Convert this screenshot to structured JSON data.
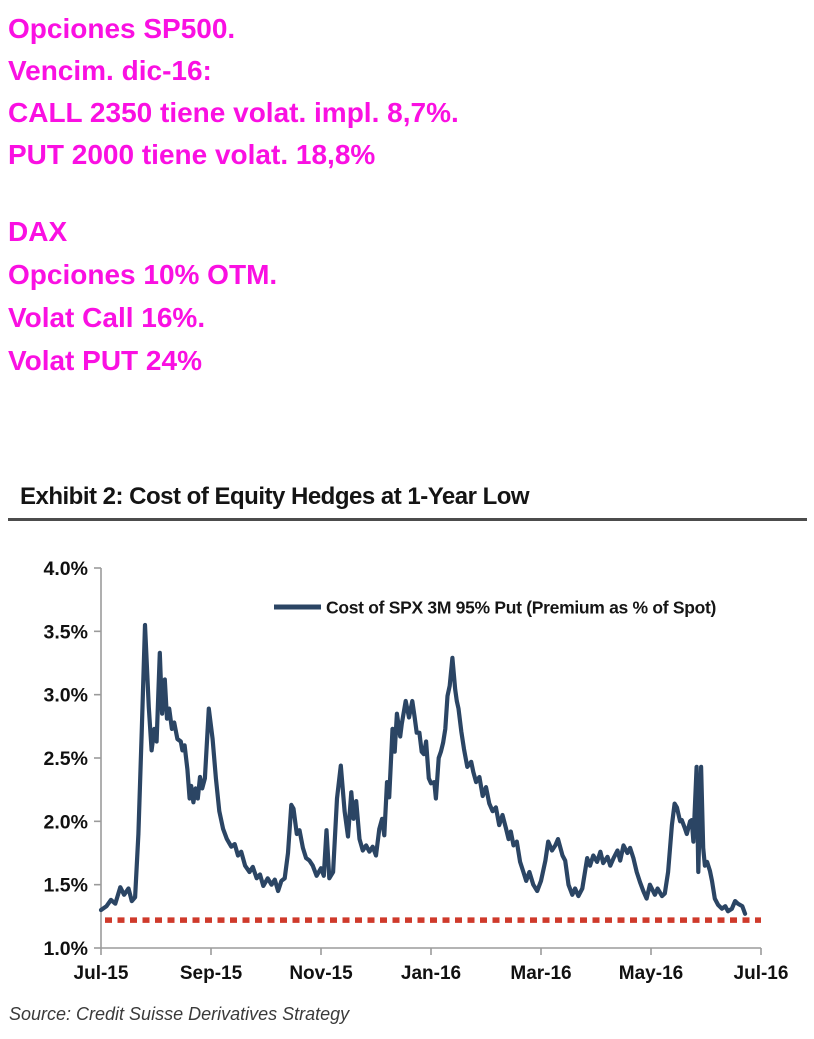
{
  "colors": {
    "magenta": "#fa10e2",
    "series_line": "#2b4564",
    "reference_dotted": "#cf3a2b",
    "axis": "#9b9b9b",
    "tick_label": "#111111",
    "legend_text": "#161616",
    "exhibit_rule": "#4c4c4c",
    "background": "#ffffff"
  },
  "annotations": {
    "block1": {
      "lines": [
        "Opciones SP500.",
        "Vencim. dic-16:",
        "CALL 2350 tiene volat. impl. 8,7%.",
        "PUT 2000 tiene volat. 18,8%"
      ]
    },
    "block2": {
      "lines": [
        "DAX",
        "Opciones 10% OTM.",
        "Volat Call 16%.",
        "Volat PUT 24%"
      ]
    }
  },
  "exhibit": {
    "title": "Exhibit 2: Cost of Equity Hedges at 1-Year Low",
    "source": "Source: Credit Suisse Derivatives Strategy"
  },
  "chart_data": {
    "type": "line",
    "title": "Exhibit 2: Cost of Equity Hedges at 1-Year Low",
    "xlabel": "",
    "ylabel": "Premium as % of Spot",
    "legend_position": "top-center-inside",
    "grid": false,
    "ylim": [
      1.0,
      4.0
    ],
    "xlim_months": [
      0,
      12
    ],
    "legend": [
      "Cost of SPX 3M 95% Put (Premium as % of Spot)"
    ],
    "y_ticks": [
      {
        "label": "4.0%",
        "v": 4.0
      },
      {
        "label": "3.5%",
        "v": 3.5
      },
      {
        "label": "3.0%",
        "v": 3.0
      },
      {
        "label": "2.5%",
        "v": 2.5
      },
      {
        "label": "2.0%",
        "v": 2.0
      },
      {
        "label": "1.5%",
        "v": 1.5
      },
      {
        "label": "1.0%",
        "v": 1.0
      }
    ],
    "x_ticks": [
      {
        "label": "Jul-15",
        "m": 0
      },
      {
        "label": "Sep-15",
        "m": 2
      },
      {
        "label": "Nov-15",
        "m": 4
      },
      {
        "label": "Jan-16",
        "m": 6
      },
      {
        "label": "Mar-16",
        "m": 8
      },
      {
        "label": "May-16",
        "m": 10
      },
      {
        "label": "Jul-16",
        "m": 12
      }
    ],
    "reference_line": {
      "value": 1.22,
      "style": "dotted",
      "color": "#cf3a2b"
    },
    "series": [
      {
        "name": "Cost of SPX 3M 95% Put (Premium as % of Spot)",
        "color": "#2b4564",
        "points": [
          [
            0.0,
            1.3
          ],
          [
            0.1,
            1.33
          ],
          [
            0.18,
            1.38
          ],
          [
            0.26,
            1.35
          ],
          [
            0.35,
            1.48
          ],
          [
            0.42,
            1.42
          ],
          [
            0.5,
            1.47
          ],
          [
            0.56,
            1.37
          ],
          [
            0.62,
            1.4
          ],
          [
            0.68,
            1.9
          ],
          [
            0.74,
            2.7
          ],
          [
            0.8,
            3.55
          ],
          [
            0.87,
            2.9
          ],
          [
            0.92,
            2.56
          ],
          [
            0.97,
            2.73
          ],
          [
            1.01,
            2.63
          ],
          [
            1.07,
            3.33
          ],
          [
            1.11,
            2.85
          ],
          [
            1.16,
            3.12
          ],
          [
            1.2,
            2.81
          ],
          [
            1.24,
            2.89
          ],
          [
            1.29,
            2.73
          ],
          [
            1.33,
            2.78
          ],
          [
            1.39,
            2.65
          ],
          [
            1.45,
            2.63
          ],
          [
            1.48,
            2.56
          ],
          [
            1.52,
            2.6
          ],
          [
            1.57,
            2.41
          ],
          [
            1.61,
            2.18
          ],
          [
            1.64,
            2.28
          ],
          [
            1.68,
            2.15
          ],
          [
            1.72,
            2.26
          ],
          [
            1.76,
            2.18
          ],
          [
            1.8,
            2.35
          ],
          [
            1.84,
            2.26
          ],
          [
            1.89,
            2.34
          ],
          [
            1.96,
            2.89
          ],
          [
            2.03,
            2.65
          ],
          [
            2.09,
            2.34
          ],
          [
            2.15,
            2.08
          ],
          [
            2.22,
            1.94
          ],
          [
            2.29,
            1.86
          ],
          [
            2.37,
            1.8
          ],
          [
            2.43,
            1.82
          ],
          [
            2.49,
            1.73
          ],
          [
            2.55,
            1.76
          ],
          [
            2.62,
            1.65
          ],
          [
            2.7,
            1.6
          ],
          [
            2.76,
            1.64
          ],
          [
            2.83,
            1.55
          ],
          [
            2.89,
            1.58
          ],
          [
            2.95,
            1.49
          ],
          [
            3.03,
            1.55
          ],
          [
            3.1,
            1.5
          ],
          [
            3.16,
            1.54
          ],
          [
            3.22,
            1.45
          ],
          [
            3.28,
            1.53
          ],
          [
            3.34,
            1.55
          ],
          [
            3.4,
            1.75
          ],
          [
            3.46,
            2.13
          ],
          [
            3.5,
            2.1
          ],
          [
            3.56,
            1.9
          ],
          [
            3.61,
            1.93
          ],
          [
            3.67,
            1.79
          ],
          [
            3.73,
            1.71
          ],
          [
            3.79,
            1.69
          ],
          [
            3.85,
            1.65
          ],
          [
            3.92,
            1.57
          ],
          [
            4.0,
            1.63
          ],
          [
            4.05,
            1.57
          ],
          [
            4.1,
            1.93
          ],
          [
            4.15,
            1.55
          ],
          [
            4.22,
            1.6
          ],
          [
            4.29,
            2.18
          ],
          [
            4.36,
            2.44
          ],
          [
            4.43,
            2.08
          ],
          [
            4.49,
            1.88
          ],
          [
            4.55,
            2.23
          ],
          [
            4.59,
            2.02
          ],
          [
            4.64,
            2.16
          ],
          [
            4.7,
            1.86
          ],
          [
            4.76,
            1.77
          ],
          [
            4.82,
            1.81
          ],
          [
            4.88,
            1.76
          ],
          [
            4.94,
            1.8
          ],
          [
            5.0,
            1.73
          ],
          [
            5.06,
            1.94
          ],
          [
            5.11,
            2.02
          ],
          [
            5.15,
            1.89
          ],
          [
            5.2,
            2.31
          ],
          [
            5.24,
            2.19
          ],
          [
            5.3,
            2.73
          ],
          [
            5.34,
            2.55
          ],
          [
            5.38,
            2.85
          ],
          [
            5.44,
            2.67
          ],
          [
            5.47,
            2.77
          ],
          [
            5.54,
            2.95
          ],
          [
            5.6,
            2.82
          ],
          [
            5.66,
            2.95
          ],
          [
            5.7,
            2.83
          ],
          [
            5.74,
            2.7
          ],
          [
            5.79,
            2.7
          ],
          [
            5.83,
            2.55
          ],
          [
            5.87,
            2.53
          ],
          [
            5.91,
            2.63
          ],
          [
            5.96,
            2.34
          ],
          [
            6.0,
            2.3
          ],
          [
            6.06,
            2.31
          ],
          [
            6.09,
            2.18
          ],
          [
            6.14,
            2.5
          ],
          [
            6.18,
            2.55
          ],
          [
            6.22,
            2.62
          ],
          [
            6.26,
            2.73
          ],
          [
            6.3,
            2.99
          ],
          [
            6.34,
            3.07
          ],
          [
            6.39,
            3.29
          ],
          [
            6.44,
            3.04
          ],
          [
            6.47,
            2.95
          ],
          [
            6.5,
            2.89
          ],
          [
            6.55,
            2.71
          ],
          [
            6.6,
            2.57
          ],
          [
            6.66,
            2.43
          ],
          [
            6.73,
            2.47
          ],
          [
            6.77,
            2.39
          ],
          [
            6.82,
            2.31
          ],
          [
            6.88,
            2.35
          ],
          [
            6.94,
            2.2
          ],
          [
            7.0,
            2.27
          ],
          [
            7.06,
            2.14
          ],
          [
            7.12,
            2.08
          ],
          [
            7.18,
            2.11
          ],
          [
            7.24,
            1.97
          ],
          [
            7.3,
            2.05
          ],
          [
            7.36,
            1.95
          ],
          [
            7.41,
            1.86
          ],
          [
            7.45,
            1.92
          ],
          [
            7.5,
            1.81
          ],
          [
            7.56,
            1.84
          ],
          [
            7.62,
            1.68
          ],
          [
            7.68,
            1.6
          ],
          [
            7.73,
            1.53
          ],
          [
            7.79,
            1.6
          ],
          [
            7.86,
            1.5
          ],
          [
            7.93,
            1.45
          ],
          [
            8.0,
            1.53
          ],
          [
            8.08,
            1.69
          ],
          [
            8.13,
            1.84
          ],
          [
            8.2,
            1.77
          ],
          [
            8.26,
            1.81
          ],
          [
            8.31,
            1.86
          ],
          [
            8.39,
            1.73
          ],
          [
            8.44,
            1.69
          ],
          [
            8.5,
            1.5
          ],
          [
            8.57,
            1.42
          ],
          [
            8.62,
            1.47
          ],
          [
            8.68,
            1.41
          ],
          [
            8.75,
            1.47
          ],
          [
            8.84,
            1.71
          ],
          [
            8.89,
            1.65
          ],
          [
            8.95,
            1.73
          ],
          [
            9.02,
            1.68
          ],
          [
            9.08,
            1.76
          ],
          [
            9.13,
            1.67
          ],
          [
            9.21,
            1.72
          ],
          [
            9.26,
            1.65
          ],
          [
            9.32,
            1.71
          ],
          [
            9.39,
            1.77
          ],
          [
            9.44,
            1.69
          ],
          [
            9.5,
            1.81
          ],
          [
            9.57,
            1.75
          ],
          [
            9.62,
            1.79
          ],
          [
            9.68,
            1.71
          ],
          [
            9.74,
            1.6
          ],
          [
            9.8,
            1.52
          ],
          [
            9.86,
            1.45
          ],
          [
            9.92,
            1.39
          ],
          [
            9.98,
            1.5
          ],
          [
            10.07,
            1.42
          ],
          [
            10.12,
            1.47
          ],
          [
            10.2,
            1.41
          ],
          [
            10.25,
            1.43
          ],
          [
            10.31,
            1.6
          ],
          [
            10.38,
            1.97
          ],
          [
            10.43,
            2.14
          ],
          [
            10.47,
            2.11
          ],
          [
            10.53,
            2.0
          ],
          [
            10.56,
            2.01
          ],
          [
            10.62,
            1.94
          ],
          [
            10.65,
            1.9
          ],
          [
            10.71,
            2.0
          ],
          [
            10.74,
            2.01
          ],
          [
            10.77,
            1.84
          ],
          [
            10.83,
            2.43
          ],
          [
            10.86,
            1.6
          ],
          [
            10.91,
            2.43
          ],
          [
            10.95,
            1.79
          ],
          [
            10.98,
            1.65
          ],
          [
            11.02,
            1.68
          ],
          [
            11.07,
            1.61
          ],
          [
            11.11,
            1.53
          ],
          [
            11.16,
            1.39
          ],
          [
            11.22,
            1.34
          ],
          [
            11.29,
            1.31
          ],
          [
            11.35,
            1.33
          ],
          [
            11.4,
            1.29
          ],
          [
            11.47,
            1.31
          ],
          [
            11.53,
            1.37
          ],
          [
            11.58,
            1.35
          ],
          [
            11.66,
            1.33
          ],
          [
            11.71,
            1.27
          ]
        ]
      }
    ]
  }
}
